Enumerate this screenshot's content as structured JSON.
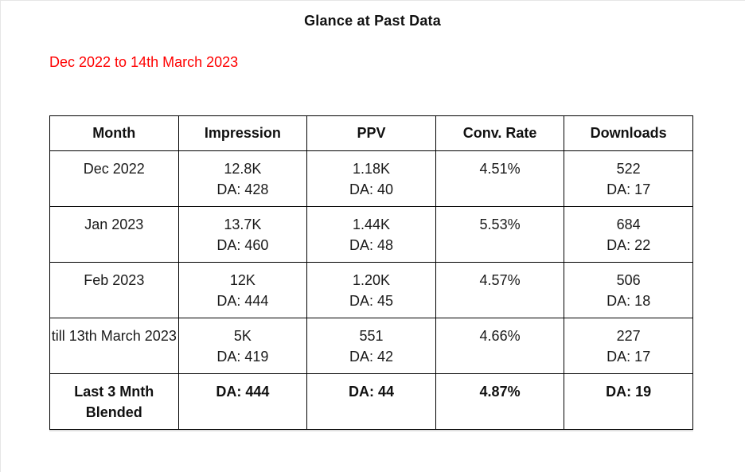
{
  "page": {
    "title": "Glance at Past Data",
    "subtitle": "Dec 2022 to 14th March 2023"
  },
  "colors": {
    "subtitle_text": "#ff0000",
    "body_text": "#1a1a1a",
    "table_border": "#000000",
    "background": "#ffffff"
  },
  "table": {
    "headers": [
      "Month",
      "Impression",
      "PPV",
      "Conv. Rate",
      "Downloads"
    ],
    "rows": [
      {
        "bold": false,
        "cells": [
          {
            "line1": "Dec 2022",
            "line2": ""
          },
          {
            "line1": "12.8K",
            "line2": "DA: 428"
          },
          {
            "line1": "1.18K",
            "line2": "DA: 40"
          },
          {
            "line1": "4.51%",
            "line2": ""
          },
          {
            "line1": "522",
            "line2": "DA: 17"
          }
        ]
      },
      {
        "bold": false,
        "cells": [
          {
            "line1": "Jan 2023",
            "line2": ""
          },
          {
            "line1": "13.7K",
            "line2": "DA: 460"
          },
          {
            "line1": "1.44K",
            "line2": "DA: 48"
          },
          {
            "line1": "5.53%",
            "line2": ""
          },
          {
            "line1": "684",
            "line2": "DA: 22"
          }
        ]
      },
      {
        "bold": false,
        "cells": [
          {
            "line1": "Feb 2023",
            "line2": ""
          },
          {
            "line1": "12K",
            "line2": "DA: 444"
          },
          {
            "line1": "1.20K",
            "line2": "DA: 45"
          },
          {
            "line1": "4.57%",
            "line2": ""
          },
          {
            "line1": "506",
            "line2": "DA: 18"
          }
        ]
      },
      {
        "bold": false,
        "cells": [
          {
            "line1": "till 13th March 2023",
            "line2": ""
          },
          {
            "line1": "5K",
            "line2": "DA: 419"
          },
          {
            "line1": "551",
            "line2": "DA: 42"
          },
          {
            "line1": "4.66%",
            "line2": ""
          },
          {
            "line1": "227",
            "line2": "DA: 17"
          }
        ]
      },
      {
        "bold": true,
        "cells": [
          {
            "line1": "Last 3 Mnth Blended",
            "line2": ""
          },
          {
            "line1": "DA: 444",
            "line2": ""
          },
          {
            "line1": "DA: 44",
            "line2": ""
          },
          {
            "line1": "4.87%",
            "line2": ""
          },
          {
            "line1": "DA: 19",
            "line2": ""
          }
        ]
      }
    ]
  }
}
